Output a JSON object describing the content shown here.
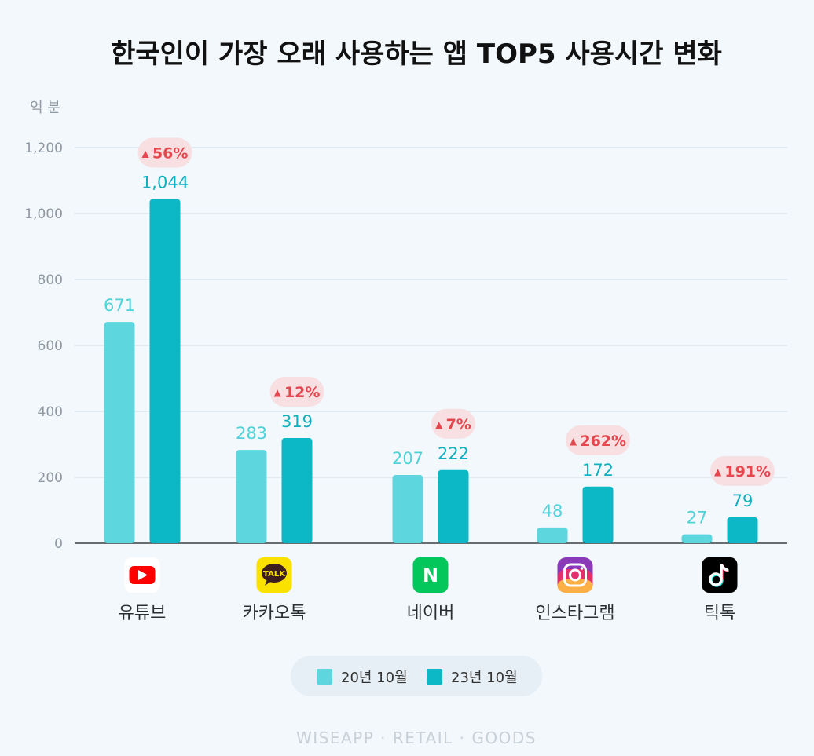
{
  "chart_data": {
    "type": "bar",
    "title": "한국인이 가장 오래 사용하는 앱 TOP5 사용시간 변화",
    "unit_label": "억 분",
    "yticks": [
      "0",
      "200",
      "400",
      "600",
      "800",
      "1,000",
      "1,200"
    ],
    "ylim": [
      0,
      1200
    ],
    "categories": [
      "유튜브",
      "카카오톡",
      "네이버",
      "인스타그램",
      "틱톡"
    ],
    "series": [
      {
        "name": "20년 10월",
        "color": "#5dd6dd",
        "values": [
          671,
          283,
          207,
          48,
          27
        ],
        "labels": [
          "671",
          "283",
          "207",
          "48",
          "27"
        ]
      },
      {
        "name": "23년 10월",
        "color": "#0cb8c5",
        "values": [
          1044,
          319,
          222,
          172,
          79
        ],
        "labels": [
          "1,044",
          "319",
          "222",
          "172",
          "79"
        ]
      }
    ],
    "growth": [
      "56%",
      "12%",
      "7%",
      "262%",
      "191%"
    ],
    "icons": [
      "youtube-icon",
      "kakaotalk-icon",
      "naver-icon",
      "instagram-icon",
      "tiktok-icon"
    ],
    "icon_colors": [
      "#ff0000",
      "#fae100",
      "#03c75a",
      "#e1306c",
      "#000000"
    ],
    "icon_text": [
      "",
      "TALK",
      "N",
      "",
      ""
    ],
    "up_marker": "▲",
    "grid": true,
    "legend_position": "bottom"
  },
  "footer": "WISEAPP · RETAIL · GOODS"
}
